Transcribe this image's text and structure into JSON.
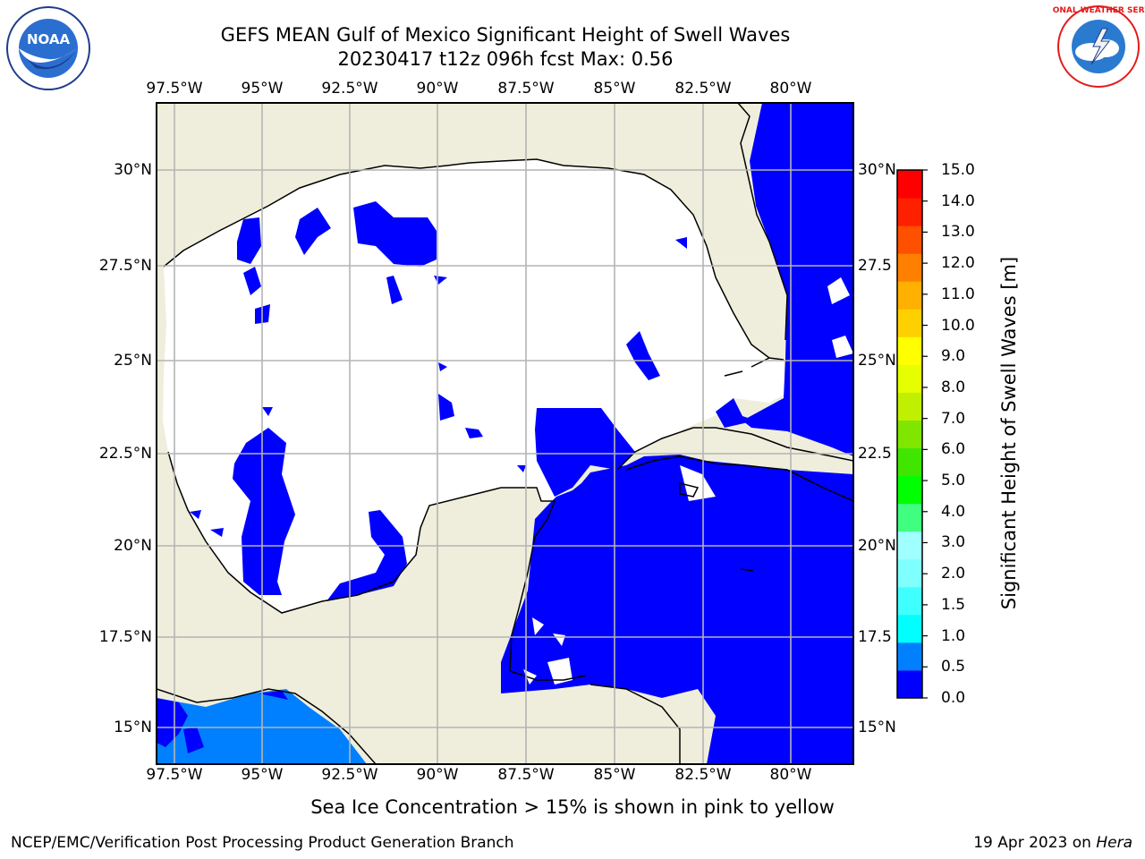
{
  "title_line1": "GEFS MEAN Gulf of Mexico Significant Height of Swell Waves",
  "title_line2": "20230417 t12z 096h fcst   Max: 0.56",
  "logos": {
    "left": "noaa-logo",
    "right": "national-weather-service-logo"
  },
  "logo_text": {
    "left": "NOAA",
    "right": "NATIONAL WEATHER SERVICE"
  },
  "map": {
    "lon_ticks": [
      "97.5°W",
      "95°W",
      "92.5°W",
      "90°W",
      "87.5°W",
      "85°W",
      "82.5°W",
      "80°W"
    ],
    "lat_ticks_left": [
      "30°N",
      "27.5°N",
      "25°N",
      "22.5°N",
      "20°N",
      "17.5°N",
      "15°N"
    ],
    "lat_ticks_right": [
      "30°N",
      "27.5",
      "25°N",
      "22.5",
      "20°N",
      "17.5",
      "15°N"
    ],
    "colors": {
      "land": "#efeedc",
      "ocean_calm": "#ffffff",
      "swell_0": "#0000ff",
      "swell_05": "#0080ff",
      "grid": "#b4b4b4"
    }
  },
  "colorbar": {
    "labels": [
      "15.0",
      "14.0",
      "13.0",
      "12.0",
      "11.0",
      "10.0",
      "9.0",
      "8.0",
      "7.0",
      "6.0",
      "5.0",
      "4.0",
      "3.0",
      "2.0",
      "1.5",
      "1.0",
      "0.5",
      "0.0"
    ],
    "colors_bottom_to_top": [
      "#0000ff",
      "#0080ff",
      "#00ffff",
      "#40ffff",
      "#80ffff",
      "#a0ffff",
      "#40ff80",
      "#00ff00",
      "#40e600",
      "#80e600",
      "#c0f000",
      "#e6ff00",
      "#ffff00",
      "#ffd000",
      "#ffb000",
      "#ff8000",
      "#ff5000",
      "#ff2000",
      "#ff0000"
    ],
    "title": "Significant Height of Swell Waves [m]"
  },
  "footnote": "Sea Ice Concentration > 15% is shown in pink to yellow",
  "credit_left": "NCEP/EMC/Verification Post Processing Product Generation Branch",
  "credit_right_date": "19 Apr 2023 on",
  "credit_right_host": "Hera"
}
